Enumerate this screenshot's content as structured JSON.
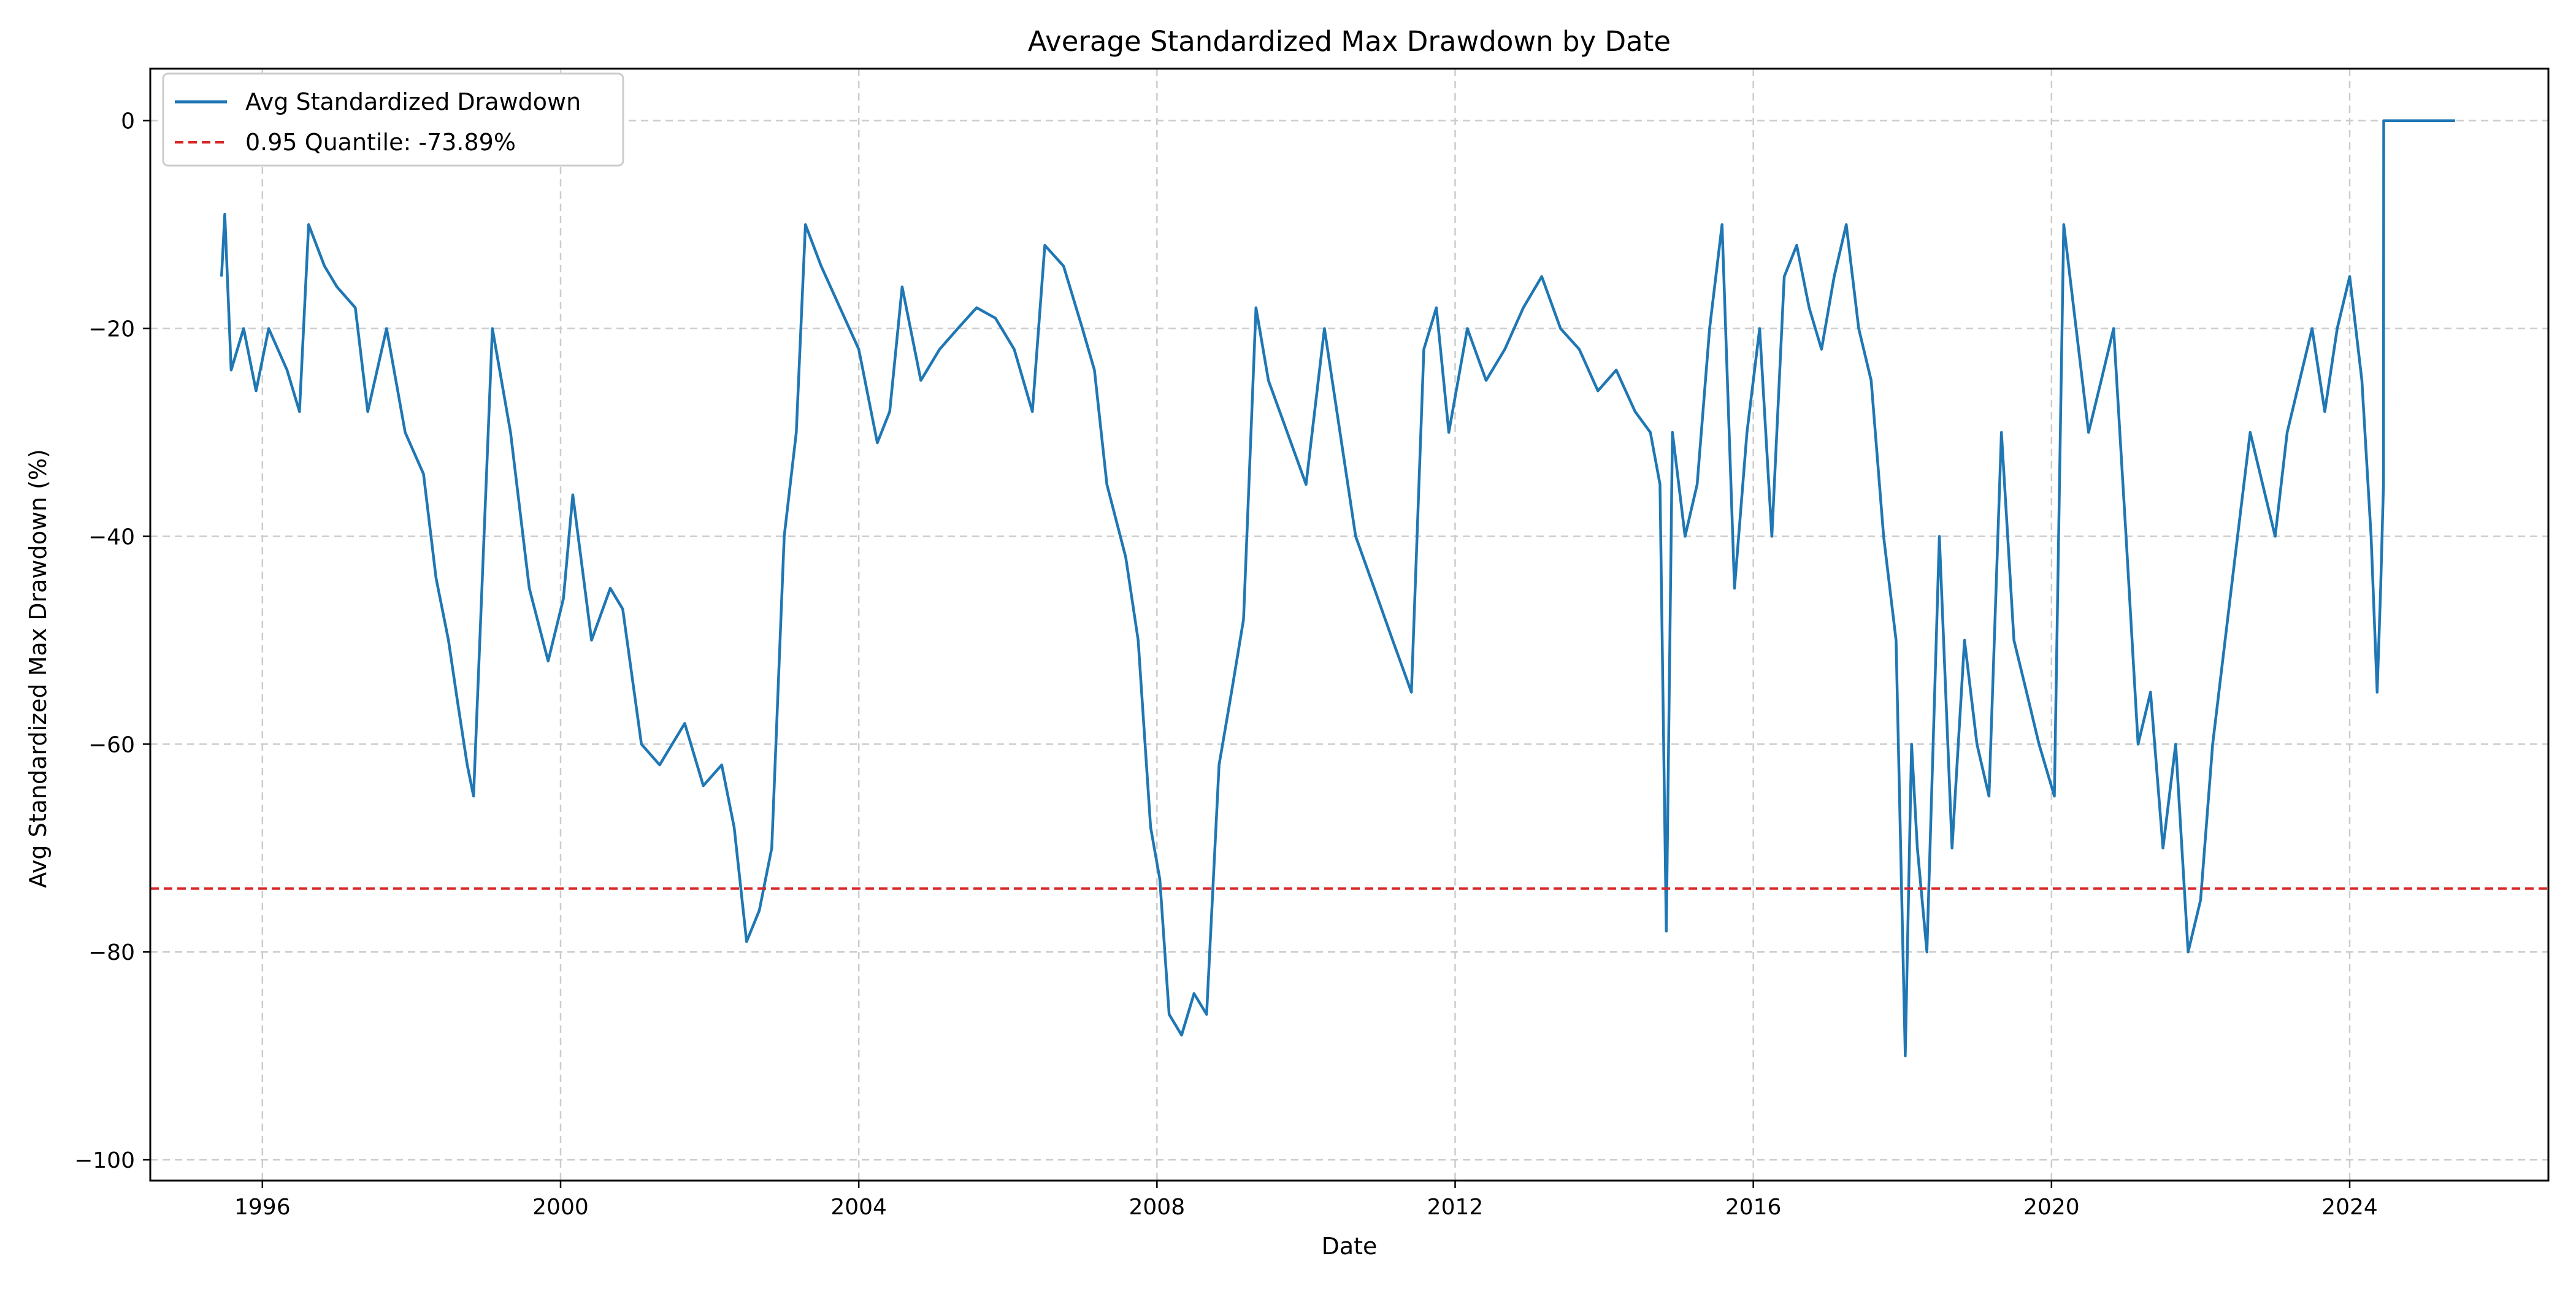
{
  "chart_data": {
    "type": "line",
    "title": "Average Standardized Max Drawdown by Date",
    "xlabel": "Date",
    "ylabel": "Avg Standardized Max Drawdown (%)",
    "xlim": [
      "1994-07-01",
      "2026-09-01"
    ],
    "ylim": [
      -102,
      5
    ],
    "x_ticks": [
      "1996",
      "2000",
      "2004",
      "2008",
      "2012",
      "2016",
      "2020",
      "2024"
    ],
    "y_ticks": [
      0,
      -20,
      -40,
      -60,
      -80,
      -100
    ],
    "y_tick_labels": [
      "0",
      "−20",
      "−40",
      "−60",
      "−80",
      "−100"
    ],
    "grid": true,
    "legend_position": "upper-left",
    "colors": {
      "series": "#1f77b4",
      "quantile": "#d62728",
      "grid": "#cccccc"
    },
    "series": [
      {
        "name": "Avg Standardized Drawdown",
        "x": [
          "1995-06-15",
          "1995-07-01",
          "1995-08-01",
          "1995-10-01",
          "1995-12-01",
          "1996-02-01",
          "1996-05-01",
          "1996-07-01",
          "1996-08-15",
          "1996-11-01",
          "1997-01-01",
          "1997-04-01",
          "1997-06-01",
          "1997-09-01",
          "1997-12-01",
          "1998-03-01",
          "1998-05-01",
          "1998-07-01",
          "1998-08-15",
          "1998-10-01",
          "1998-11-01",
          "1999-02-01",
          "1999-05-01",
          "1999-08-01",
          "1999-11-01",
          "2000-01-15",
          "2000-03-01",
          "2000-06-01",
          "2000-09-01",
          "2000-11-01",
          "2001-02-01",
          "2001-05-01",
          "2001-09-01",
          "2001-12-01",
          "2002-03-01",
          "2002-05-01",
          "2002-07-01",
          "2002-09-01",
          "2002-11-01",
          "2003-01-01",
          "2003-03-01",
          "2003-04-15",
          "2003-07-01",
          "2003-10-01",
          "2004-01-01",
          "2004-04-01",
          "2004-06-01",
          "2004-08-01",
          "2004-11-01",
          "2005-02-01",
          "2005-05-01",
          "2005-08-01",
          "2005-11-01",
          "2006-02-01",
          "2006-05-01",
          "2006-07-01",
          "2006-10-01",
          "2007-01-01",
          "2007-03-01",
          "2007-05-01",
          "2007-08-01",
          "2007-10-01",
          "2007-12-01",
          "2008-01-15",
          "2008-03-01",
          "2008-05-01",
          "2008-07-01",
          "2008-09-01",
          "2008-11-01",
          "2009-01-01",
          "2009-03-01",
          "2009-05-01",
          "2009-07-01",
          "2009-10-01",
          "2010-01-01",
          "2010-04-01",
          "2010-06-01",
          "2010-09-01",
          "2010-12-01",
          "2011-03-01",
          "2011-06-01",
          "2011-08-01",
          "2011-10-01",
          "2011-12-01",
          "2012-03-01",
          "2012-06-01",
          "2012-09-01",
          "2012-12-01",
          "2013-03-01",
          "2013-06-01",
          "2013-09-01",
          "2013-12-01",
          "2014-03-01",
          "2014-06-01",
          "2014-08-15",
          "2014-10-01",
          "2014-11-01",
          "2014-12-01",
          "2015-02-01",
          "2015-04-01",
          "2015-06-01",
          "2015-08-01",
          "2015-10-01",
          "2015-12-01",
          "2016-02-01",
          "2016-04-01",
          "2016-06-01",
          "2016-08-01",
          "2016-10-01",
          "2016-12-01",
          "2017-02-01",
          "2017-04-01",
          "2017-06-01",
          "2017-08-01",
          "2017-10-01",
          "2017-12-01",
          "2018-01-15",
          "2018-02-15",
          "2018-03-15",
          "2018-05-01",
          "2018-07-01",
          "2018-09-01",
          "2018-11-01",
          "2019-01-01",
          "2019-03-01",
          "2019-05-01",
          "2019-07-01",
          "2019-09-01",
          "2019-11-01",
          "2020-01-15",
          "2020-03-01",
          "2020-05-01",
          "2020-07-01",
          "2020-09-01",
          "2020-11-01",
          "2021-01-01",
          "2021-03-01",
          "2021-05-01",
          "2021-07-01",
          "2021-09-01",
          "2021-11-01",
          "2022-01-01",
          "2022-03-01",
          "2022-05-01",
          "2022-07-01",
          "2022-09-01",
          "2022-11-01",
          "2023-01-01",
          "2023-03-01",
          "2023-05-01",
          "2023-07-01",
          "2023-09-01",
          "2023-11-01",
          "2024-01-01",
          "2024-03-01",
          "2024-04-15",
          "2024-05-15",
          "2024-06-01",
          "2024-06-15",
          "2024-06-16",
          "2024-09-01",
          "2025-01-01",
          "2025-06-01"
        ],
        "y": [
          -15,
          -9,
          -24,
          -20,
          -26,
          -20,
          -24,
          -28,
          -10,
          -14,
          -16,
          -18,
          -28,
          -20,
          -30,
          -34,
          -44,
          -50,
          -56,
          -62,
          -65,
          -20,
          -30,
          -45,
          -52,
          -46,
          -36,
          -50,
          -45,
          -47,
          -60,
          -62,
          -58,
          -64,
          -62,
          -68,
          -79,
          -76,
          -70,
          -40,
          -30,
          -10,
          -14,
          -18,
          -22,
          -31,
          -28,
          -16,
          -25,
          -22,
          -20,
          -18,
          -19,
          -22,
          -28,
          -12,
          -14,
          -20,
          -24,
          -35,
          -42,
          -50,
          -68,
          -73,
          -86,
          -88,
          -84,
          -86,
          -62,
          -55,
          -48,
          -18,
          -25,
          -30,
          -35,
          -20,
          -28,
          -40,
          -45,
          -50,
          -55,
          -22,
          -18,
          -30,
          -20,
          -25,
          -22,
          -18,
          -15,
          -20,
          -22,
          -26,
          -24,
          -28,
          -30,
          -35,
          -78,
          -30,
          -40,
          -35,
          -20,
          -10,
          -45,
          -30,
          -20,
          -40,
          -15,
          -12,
          -18,
          -22,
          -15,
          -10,
          -20,
          -25,
          -40,
          -50,
          -90,
          -60,
          -70,
          -80,
          -40,
          -70,
          -50,
          -60,
          -65,
          -30,
          -50,
          -55,
          -60,
          -65,
          -10,
          -20,
          -30,
          -25,
          -20,
          -40,
          -60,
          -55,
          -70,
          -60,
          -80,
          -75,
          -60,
          -50,
          -40,
          -30,
          -35,
          -40,
          -30,
          -25,
          -20,
          -28,
          -20,
          -15,
          -25,
          -40,
          -55,
          -45,
          -35,
          0,
          0,
          0,
          0
        ]
      },
      {
        "name": "0.95 Quantile: -73.89%",
        "type": "hline",
        "y": -73.89
      }
    ]
  }
}
